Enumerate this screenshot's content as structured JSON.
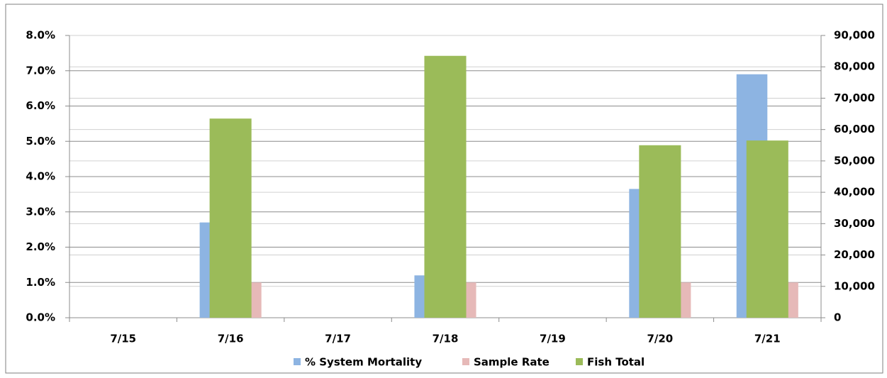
{
  "chart_data": {
    "type": "bar",
    "categories": [
      "7/15",
      "7/16",
      "7/17",
      "7/18",
      "7/19",
      "7/20",
      "7/21"
    ],
    "series": [
      {
        "name": "% System Mortality",
        "color": "#8db4e2",
        "values": [
          null,
          2.7,
          null,
          1.2,
          null,
          3.65,
          6.9
        ]
      },
      {
        "name": "Sample Rate",
        "color": "#e6b9b8",
        "values": [
          null,
          1.0,
          null,
          1.0,
          null,
          1.0,
          1.0
        ]
      },
      {
        "name": "Fish Total",
        "color": "#9bbb59",
        "axis": "y2",
        "values": [
          null,
          63500,
          null,
          83500,
          null,
          55000,
          56500
        ]
      }
    ],
    "ylim": [
      0,
      8
    ],
    "yticks": [
      {
        "value": 0,
        "label": "0.0%"
      },
      {
        "value": 1,
        "label": "1.0%"
      },
      {
        "value": 2,
        "label": "2.0%"
      },
      {
        "value": 3,
        "label": "3.0%"
      },
      {
        "value": 4,
        "label": "4.0%"
      },
      {
        "value": 5,
        "label": "5.0%"
      },
      {
        "value": 6,
        "label": "6.0%"
      },
      {
        "value": 7,
        "label": "7.0%"
      },
      {
        "value": 8,
        "label": "8.0%"
      }
    ],
    "y2lim": [
      0,
      90000
    ],
    "y2ticks": [
      0,
      {
        "value": 10000,
        "label": "10,000"
      },
      {
        "value": 20000,
        "label": "20,000"
      },
      {
        "value": 30000,
        "label": "30,000"
      },
      {
        "value": 40000,
        "label": "40,000"
      },
      {
        "value": 50000,
        "label": "50,000"
      },
      {
        "value": 60000,
        "label": "60,000"
      },
      {
        "value": 70000,
        "label": "70,000"
      },
      {
        "value": 80000,
        "label": "80,000"
      },
      {
        "value": 90000,
        "label": "90,000"
      }
    ],
    "grid": true,
    "legend": "bottom"
  }
}
